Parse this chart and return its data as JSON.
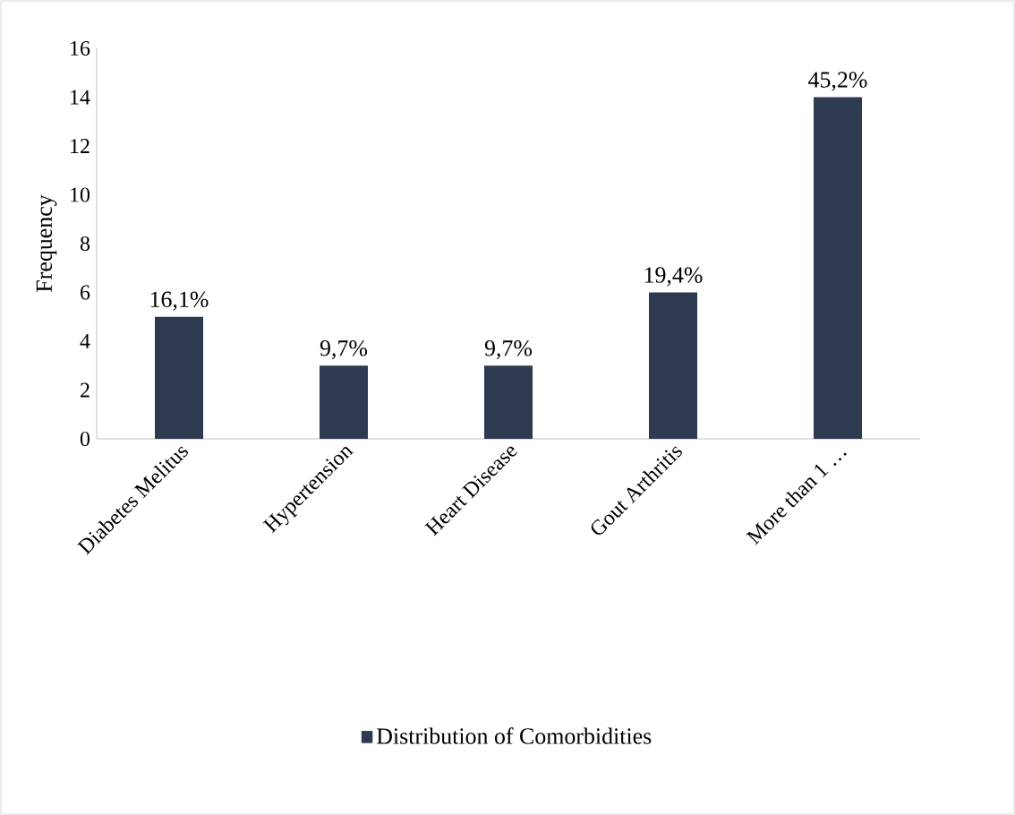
{
  "chart_data": {
    "type": "bar",
    "ylabel": "Frequency",
    "categories": [
      "Diabetes Melitus",
      "Hypertension",
      "Heart Disease",
      "Gout Arthritis",
      "More than 1 …"
    ],
    "series": [
      {
        "name": "Distribution of Comorbidities",
        "color": "#2e3a4f",
        "values": [
          5,
          3,
          3,
          6,
          14
        ]
      }
    ],
    "annotations": [
      {
        "text": "16,1%",
        "x": "Diabetes Melitus",
        "y": 5
      },
      {
        "text": "9,7%",
        "x": "Hypertension",
        "y": 3
      },
      {
        "text": "9,7%",
        "x": "Heart Disease",
        "y": 3
      },
      {
        "text": "19,4%",
        "x": "Gout Arthritis",
        "y": 6
      },
      {
        "text": "45,2%",
        "x": "More than 1 …",
        "y": 14
      }
    ],
    "ylim": [
      0,
      16
    ],
    "yticks": [
      0,
      2,
      4,
      6,
      8,
      10,
      12,
      14,
      16
    ],
    "legend": "bottom"
  }
}
